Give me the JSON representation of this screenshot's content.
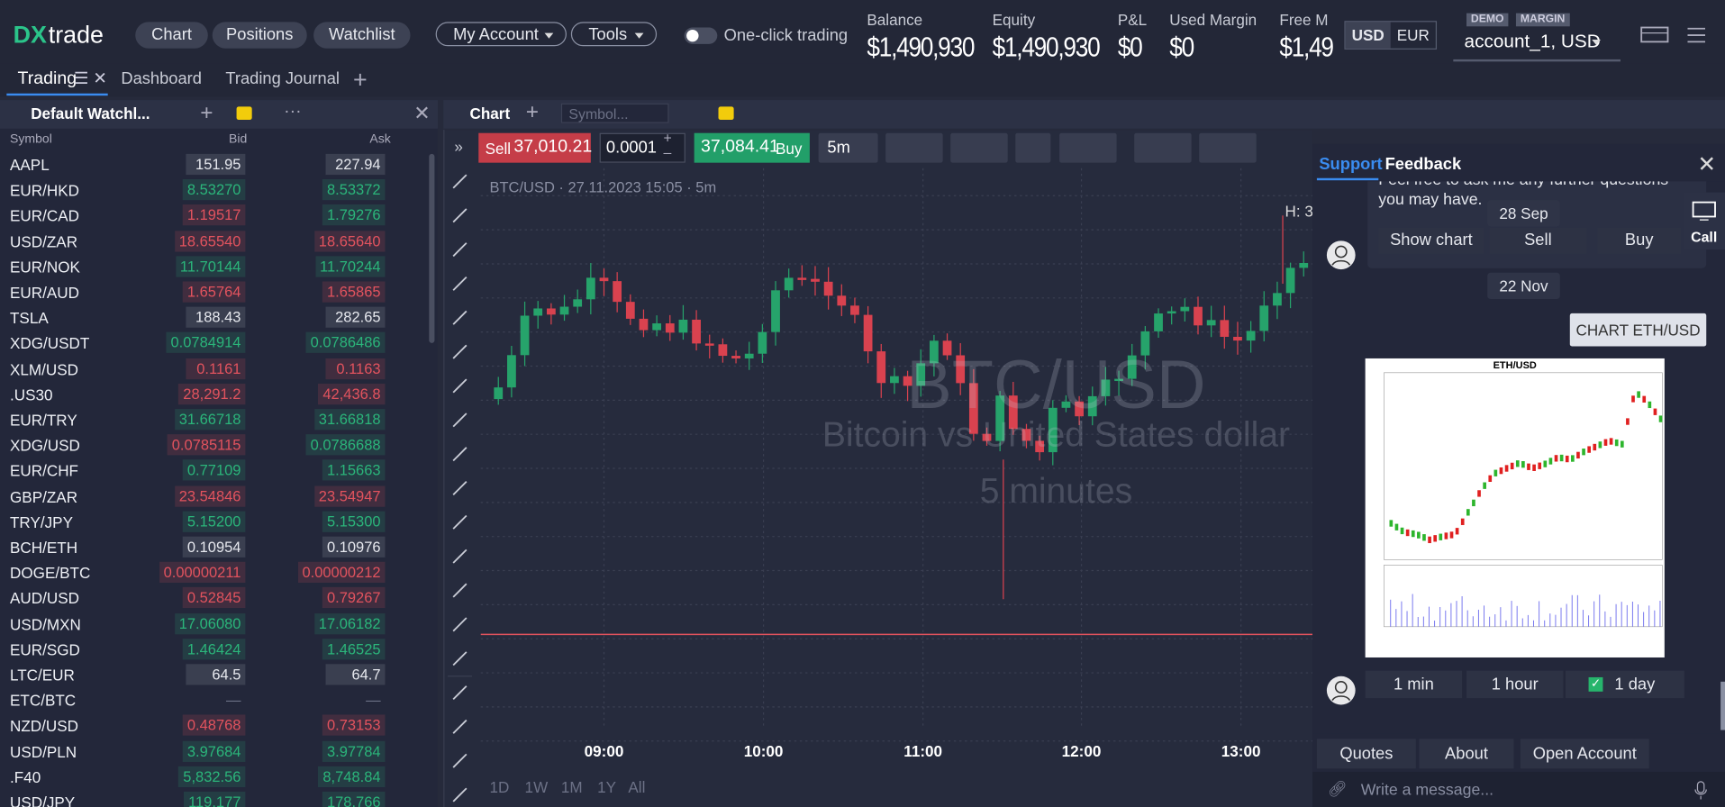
{
  "header": {
    "logo": {
      "mark": "DX",
      "word": "trade"
    },
    "nav": [
      "Chart",
      "Positions",
      "Watchlist"
    ],
    "menus": [
      "My Account",
      "Tools"
    ],
    "toggle": "One-click trading",
    "stats": [
      {
        "label": "Balance",
        "value": "$1,490,930"
      },
      {
        "label": "Equity",
        "value": "$1,490,930"
      },
      {
        "label": "P&L",
        "value": "$0"
      },
      {
        "label": "Used Margin",
        "value": "$0"
      },
      {
        "label": "Free M",
        "value": "$1,49"
      }
    ],
    "currencies": [
      "USD",
      "EUR"
    ],
    "badges": [
      "DEMO",
      "MARGIN"
    ],
    "account": "account_1, USD"
  },
  "tabs": [
    "Trading",
    "Dashboard",
    "Trading Journal"
  ],
  "watchlist": {
    "title": "Default Watchl...",
    "columns": [
      "Symbol",
      "Bid",
      "Ask"
    ],
    "bid_colors": {
      "up": "#2bb57a",
      "down": "#e2535e",
      "flat": "#e6e8ee"
    },
    "rows": [
      {
        "symbol": "AAPL",
        "bid": "151.95",
        "ask": "227.94",
        "bid_tone": "flat",
        "ask_tone": "flat"
      },
      {
        "symbol": "EUR/HKD",
        "bid": "8.53270",
        "ask": "8.53372",
        "bid_tone": "up",
        "ask_tone": "up"
      },
      {
        "symbol": "EUR/CAD",
        "bid": "1.19517",
        "ask": "1.79276",
        "bid_tone": "down",
        "ask_tone": "up"
      },
      {
        "symbol": "USD/ZAR",
        "bid": "18.65540",
        "ask": "18.65640",
        "bid_tone": "down",
        "ask_tone": "down"
      },
      {
        "symbol": "EUR/NOK",
        "bid": "11.70144",
        "ask": "11.70244",
        "bid_tone": "up",
        "ask_tone": "up"
      },
      {
        "symbol": "EUR/AUD",
        "bid": "1.65764",
        "ask": "1.65865",
        "bid_tone": "down",
        "ask_tone": "down"
      },
      {
        "symbol": "TSLA",
        "bid": "188.43",
        "ask": "282.65",
        "bid_tone": "flat",
        "ask_tone": "flat"
      },
      {
        "symbol": "XDG/USDT",
        "bid": "0.0784914",
        "ask": "0.0786486",
        "bid_tone": "up",
        "ask_tone": "up"
      },
      {
        "symbol": "XLM/USD",
        "bid": "0.1161",
        "ask": "0.1163",
        "bid_tone": "down",
        "ask_tone": "down"
      },
      {
        "symbol": ".US30",
        "bid": "28,291.2",
        "ask": "42,436.8",
        "bid_tone": "down",
        "ask_tone": "down"
      },
      {
        "symbol": "EUR/TRY",
        "bid": "31.66718",
        "ask": "31.66818",
        "bid_tone": "up",
        "ask_tone": "up"
      },
      {
        "symbol": "XDG/USD",
        "bid": "0.0785115",
        "ask": "0.0786688",
        "bid_tone": "down",
        "ask_tone": "up"
      },
      {
        "symbol": "EUR/CHF",
        "bid": "0.77109",
        "ask": "1.15663",
        "bid_tone": "up",
        "ask_tone": "up"
      },
      {
        "symbol": "GBP/ZAR",
        "bid": "23.54846",
        "ask": "23.54947",
        "bid_tone": "down",
        "ask_tone": "down"
      },
      {
        "symbol": "TRY/JPY",
        "bid": "5.15200",
        "ask": "5.15300",
        "bid_tone": "up",
        "ask_tone": "up"
      },
      {
        "symbol": "BCH/ETH",
        "bid": "0.10954",
        "ask": "0.10976",
        "bid_tone": "flat",
        "ask_tone": "flat"
      },
      {
        "symbol": "DOGE/BTC",
        "bid": "0.00000211",
        "ask": "0.00000212",
        "bid_tone": "down",
        "ask_tone": "down"
      },
      {
        "symbol": "AUD/USD",
        "bid": "0.52845",
        "ask": "0.79267",
        "bid_tone": "down",
        "ask_tone": "down"
      },
      {
        "symbol": "USD/MXN",
        "bid": "17.06080",
        "ask": "17.06182",
        "bid_tone": "up",
        "ask_tone": "up"
      },
      {
        "symbol": "EUR/SGD",
        "bid": "1.46424",
        "ask": "1.46525",
        "bid_tone": "up",
        "ask_tone": "up"
      },
      {
        "symbol": "LTC/EUR",
        "bid": "64.5",
        "ask": "64.7",
        "bid_tone": "flat",
        "ask_tone": "flat"
      },
      {
        "symbol": "ETC/BTC",
        "bid": "—",
        "ask": "—",
        "bid_tone": "none",
        "ask_tone": "none"
      },
      {
        "symbol": "NZD/USD",
        "bid": "0.48768",
        "ask": "0.73153",
        "bid_tone": "down",
        "ask_tone": "down"
      },
      {
        "symbol": "USD/PLN",
        "bid": "3.97684",
        "ask": "3.97784",
        "bid_tone": "up",
        "ask_tone": "up"
      },
      {
        "symbol": ".F40",
        "bid": "5,832.56",
        "ask": "8,748.84",
        "bid_tone": "up",
        "ask_tone": "up"
      },
      {
        "symbol": "USD/JPY",
        "bid": "119.177",
        "ask": "178.766",
        "bid_tone": "up",
        "ask_tone": "up"
      }
    ]
  },
  "chart": {
    "title": "Chart",
    "symbol_placeholder": "Symbol...",
    "sell_label": "Sell",
    "sell_price": "37,010.21",
    "buy_label": "Buy",
    "buy_price": "37,084.41",
    "quantity": "0.0001",
    "interval": "5m",
    "info": "BTC/USD · 27.11.2023 15:05 · 5m",
    "watermark": {
      "symbol": "BTC/USD",
      "name": "Bitcoin vs United States dollar",
      "interval": "5 minutes"
    },
    "high_label": "H: 3",
    "times": [
      "09:00",
      "10:00",
      "11:00",
      "12:00",
      "13:00"
    ],
    "ranges": [
      "1D",
      "1W",
      "1M",
      "1Y",
      "All"
    ]
  },
  "chat": {
    "tabs": [
      "Support",
      "Feedback"
    ],
    "call": "Call",
    "message": "Feel free to ask me any further questions you may have.",
    "date1": "28 Sep",
    "actions1": [
      "Show chart",
      "Sell",
      "Buy"
    ],
    "date2": "22 Nov",
    "user_message": "CHART ETH/USD",
    "image_title": "ETH/USD",
    "actions2": [
      "1 min",
      "1 hour",
      "1 day"
    ],
    "footer": [
      "Quotes",
      "About",
      "Open Account"
    ],
    "input_placeholder": "Write a message..."
  }
}
